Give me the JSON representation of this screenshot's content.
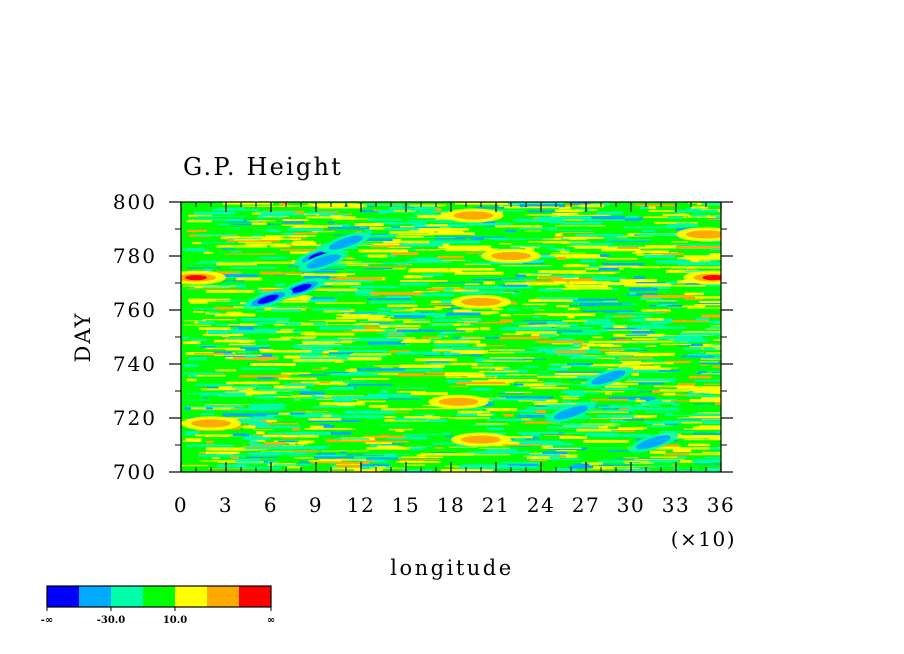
{
  "chart_data": {
    "type": "heatmap",
    "title": "G.P. Height",
    "xlabel": "longitude",
    "ylabel": "DAY",
    "x_multiplier": "(×10)",
    "xlim": [
      0,
      36
    ],
    "ylim": [
      700,
      800
    ],
    "x_ticks": [
      "0",
      "3",
      "6",
      "9",
      "12",
      "15",
      "18",
      "21",
      "24",
      "27",
      "30",
      "33",
      "36"
    ],
    "y_ticks": [
      "700",
      "720",
      "740",
      "760",
      "780",
      "800"
    ],
    "colorbar": {
      "colors": [
        "#0000ff",
        "#00aaff",
        "#00ffaa",
        "#00ff00",
        "#ffff00",
        "#ffaa00",
        "#ff0000"
      ],
      "labels": [
        "-∞",
        "-30.0",
        "10.0",
        "∞"
      ]
    },
    "dominant_band": "#00ff00",
    "features": [
      {
        "name": "low",
        "x": 8.0,
        "y": 768,
        "level": 0
      },
      {
        "name": "low",
        "x": 9.2,
        "y": 780,
        "level": 0
      },
      {
        "name": "low",
        "x": 5.8,
        "y": 764,
        "level": 0
      },
      {
        "name": "low-trough",
        "x": 9.5,
        "y": 778,
        "level": 1
      },
      {
        "name": "low-trough",
        "x": 11.0,
        "y": 785,
        "level": 1
      },
      {
        "name": "low-trough",
        "x": 26.0,
        "y": 722,
        "level": 1
      },
      {
        "name": "low-trough",
        "x": 28.5,
        "y": 735,
        "level": 1
      },
      {
        "name": "low-trough",
        "x": 31.5,
        "y": 711,
        "level": 1
      },
      {
        "name": "high",
        "x": 1.0,
        "y": 772,
        "level": 6
      },
      {
        "name": "high",
        "x": 35.5,
        "y": 772,
        "level": 6
      },
      {
        "name": "high",
        "x": 20.0,
        "y": 763,
        "level": 5
      },
      {
        "name": "high",
        "x": 19.5,
        "y": 795,
        "level": 5
      },
      {
        "name": "high",
        "x": 22.0,
        "y": 780,
        "level": 5
      },
      {
        "name": "high",
        "x": 2.0,
        "y": 718,
        "level": 5
      },
      {
        "name": "high",
        "x": 18.5,
        "y": 726,
        "level": 5
      },
      {
        "name": "high",
        "x": 20.0,
        "y": 712,
        "level": 5
      },
      {
        "name": "high",
        "x": 35.0,
        "y": 788,
        "level": 5
      }
    ]
  }
}
